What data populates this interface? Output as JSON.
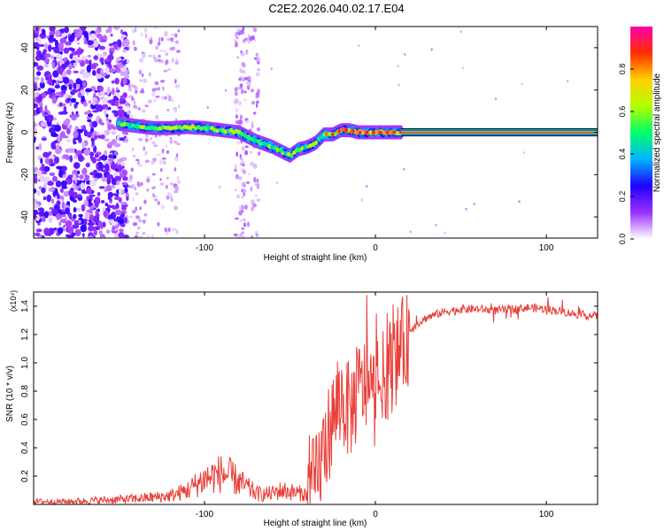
{
  "page_title": "C2E2.2026.040.02.17.E04",
  "colorbar": {
    "label": "Normalized spectral amplitude",
    "ticks": [
      {
        "value": 0.0,
        "label": "0.0"
      },
      {
        "value": 0.2,
        "label": "0.2"
      },
      {
        "value": 0.4,
        "label": "0.4"
      },
      {
        "value": 0.6,
        "label": "0.6"
      },
      {
        "value": 0.8,
        "label": "0.8"
      }
    ],
    "range": [
      0,
      1
    ],
    "colors": [
      "#ffffff",
      "#9b30ff",
      "#1f00ff",
      "#00b4ff",
      "#00ff6a",
      "#b4ff00",
      "#ffd000",
      "#ff3000",
      "#ff00aa"
    ]
  },
  "chart_data": [
    {
      "type": "heatmap",
      "title": "C2E2.2026.040.02.17.E04",
      "xlabel": "Height of straight line (km)",
      "ylabel": "Frequency (Hz)",
      "xlim": [
        -200,
        130
      ],
      "ylim": [
        -50,
        50
      ],
      "x_ticks": [
        {
          "value": -100,
          "label": "-100"
        },
        {
          "value": 0,
          "label": "0"
        },
        {
          "value": 100,
          "label": "100"
        }
      ],
      "y_ticks": [
        {
          "value": -40,
          "label": "-40"
        },
        {
          "value": -20,
          "label": "-20"
        },
        {
          "value": 0,
          "label": "0"
        },
        {
          "value": 20,
          "label": "20"
        },
        {
          "value": 40,
          "label": "40"
        }
      ],
      "ridge": {
        "description": "frequency of peak spectral amplitude vs height",
        "x": [
          -150,
          -140,
          -130,
          -120,
          -110,
          -100,
          -90,
          -80,
          -70,
          -60,
          -55,
          -50,
          -45,
          -40,
          -35,
          -30,
          -25,
          -20,
          -15,
          -10,
          -5,
          0,
          5,
          10,
          15,
          130
        ],
        "y": [
          4,
          3,
          2,
          2,
          2.5,
          2,
          1,
          0,
          -4,
          -7,
          -9,
          -11,
          -8,
          -7,
          -5,
          -1,
          -1,
          1,
          1,
          0,
          0,
          0,
          0,
          0,
          0,
          0
        ]
      },
      "steady_line": {
        "x_start": 15,
        "x_end": 130,
        "frequency": 0,
        "amplitude": 1.0
      }
    },
    {
      "type": "line",
      "xlabel": "Height of straight line (km)",
      "ylabel": "SNR (10 * v/v)",
      "y_scale_label": "(x10⁴)",
      "xlim": [
        -200,
        130
      ],
      "ylim": [
        0,
        1.5
      ],
      "x_ticks": [
        {
          "value": -100,
          "label": "-100"
        },
        {
          "value": 0,
          "label": "0"
        },
        {
          "value": 100,
          "label": "100"
        }
      ],
      "y_ticks": [
        {
          "value": 0.2,
          "label": "0.2"
        },
        {
          "value": 0.4,
          "label": "0.4"
        },
        {
          "value": 0.6,
          "label": "0.6"
        },
        {
          "value": 0.8,
          "label": "0.8"
        },
        {
          "value": 1.0,
          "label": "1.0"
        },
        {
          "value": 1.2,
          "label": "1.2"
        },
        {
          "value": 1.4,
          "label": "1.4"
        }
      ],
      "series": [
        {
          "name": "SNR",
          "color": "#e8403a",
          "x": [
            -200,
            -180,
            -160,
            -140,
            -130,
            -120,
            -115,
            -110,
            -105,
            -100,
            -95,
            -90,
            -85,
            -80,
            -75,
            -70,
            -65,
            -60,
            -55,
            -50,
            -45,
            -40,
            -35,
            -30,
            -25,
            -20,
            -15,
            -10,
            -5,
            0,
            5,
            10,
            15,
            20,
            25,
            30,
            40,
            50,
            60,
            70,
            80,
            90,
            100,
            110,
            120,
            130
          ],
          "y": [
            0.02,
            0.02,
            0.03,
            0.04,
            0.05,
            0.06,
            0.08,
            0.1,
            0.14,
            0.18,
            0.2,
            0.22,
            0.2,
            0.16,
            0.12,
            0.08,
            0.07,
            0.08,
            0.1,
            0.09,
            0.08,
            0.07,
            0.15,
            0.4,
            0.6,
            0.75,
            0.65,
            0.8,
            0.85,
            0.75,
            0.9,
            1.0,
            1.1,
            1.2,
            1.28,
            1.32,
            1.36,
            1.38,
            1.38,
            1.37,
            1.38,
            1.39,
            1.38,
            1.36,
            1.34,
            1.33
          ]
        }
      ]
    }
  ]
}
